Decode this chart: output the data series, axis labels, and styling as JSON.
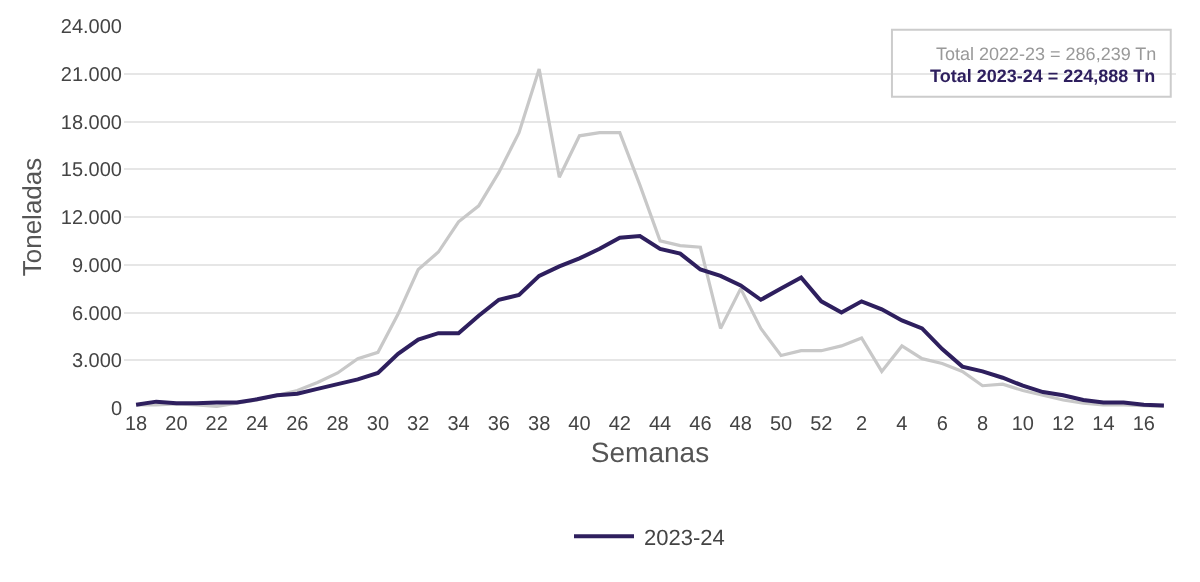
{
  "chart_data": {
    "type": "line",
    "xlabel": "Semanas",
    "ylabel": "Toneladas",
    "categories": [
      "18",
      null,
      "20",
      null,
      "22",
      null,
      "24",
      null,
      "26",
      null,
      "28",
      null,
      "30",
      null,
      "32",
      null,
      "34",
      null,
      "36",
      null,
      "38",
      null,
      "40",
      null,
      "42",
      null,
      "44",
      null,
      "46",
      null,
      "48",
      null,
      "50",
      null,
      "52",
      null,
      "2",
      null,
      "4",
      null,
      "6",
      null,
      "8",
      null,
      "10",
      null,
      "12",
      null,
      "14",
      null,
      "16",
      null
    ],
    "series": [
      {
        "color": "#c8c8c8",
        "values": [
          200,
          200,
          250,
          200,
          100,
          300,
          500,
          800,
          1100,
          1600,
          2200,
          3100,
          3500,
          5900,
          8700,
          9800,
          11700,
          12700,
          14800,
          17300,
          21300,
          14500,
          17100,
          17300,
          17300,
          14000,
          10500,
          10200,
          10100,
          5000,
          7500,
          5000,
          3300,
          3600,
          3600,
          3900,
          4400,
          2300,
          3900,
          3100,
          2800,
          2300,
          1400,
          1500,
          1100,
          800,
          500,
          300,
          200,
          200,
          150,
          100
        ]
      },
      {
        "name": "2023-24",
        "color": "#2e1f5e",
        "values": [
          200,
          400,
          300,
          300,
          350,
          350,
          550,
          800,
          900,
          1200,
          1500,
          1800,
          2200,
          3400,
          4300,
          4700,
          4700,
          5800,
          6800,
          7100,
          8300,
          8900,
          9400,
          10000,
          10700,
          10800,
          10000,
          9700,
          8700,
          8300,
          7700,
          6800,
          7500,
          8200,
          6700,
          6000,
          6700,
          6200,
          5500,
          5000,
          3700,
          2600,
          2300,
          1900,
          1400,
          1000,
          800,
          500,
          350,
          350,
          200,
          150
        ]
      }
    ],
    "ylim": [
      0,
      24000
    ],
    "yticks": [
      0,
      {
        "value": 3000,
        "label": "3.000"
      },
      {
        "value": 6000,
        "label": "6.000"
      },
      {
        "value": 9000,
        "label": "9.000"
      },
      {
        "value": 12000,
        "label": "12.000"
      },
      {
        "value": 15000,
        "label": "15.000"
      },
      {
        "value": 18000,
        "label": "18.000"
      },
      {
        "value": 21000,
        "label": "21.000"
      },
      {
        "value": 24000,
        "label": "24.000"
      }
    ],
    "annotations": [
      "Total 2022-23 = 286,239 Tn",
      "Total 2023-24 = 224,888 Tn"
    ],
    "grid": "y",
    "legend": "bottom",
    "marker": "none",
    "line_style": "solid"
  }
}
